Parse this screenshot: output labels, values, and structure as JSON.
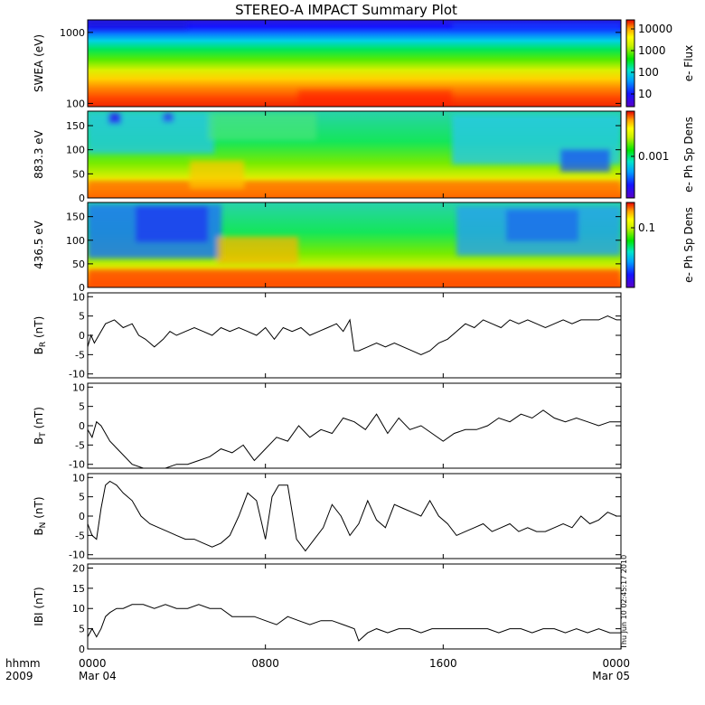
{
  "title": "STEREO-A IMPACT Summary Plot",
  "stamp": "Thu Jun 10 02:45:17 2010",
  "time_axis": {
    "units_label": "hhmm",
    "year_label": "2009",
    "ticks": [
      {
        "hours": 0,
        "label": "0000",
        "date": "Mar 04"
      },
      {
        "hours": 8,
        "label": "0800",
        "date": ""
      },
      {
        "hours": 16,
        "label": "1600",
        "date": ""
      },
      {
        "hours": 24,
        "label": "0000",
        "date": "Mar 05"
      }
    ],
    "range_hours": [
      0,
      24
    ]
  },
  "colors": {
    "line": "#000000",
    "colormap": [
      "#5a00c8",
      "#1414ff",
      "#00a0ff",
      "#00e6c8",
      "#00e600",
      "#a0f000",
      "#ffff00",
      "#ffa000",
      "#ff3000",
      "#e60000"
    ]
  },
  "chart_data": [
    {
      "type": "heatmap",
      "ylabel": "SWEA (eV)",
      "yscale": "log",
      "ylim": [
        90,
        1500
      ],
      "yticks": [
        {
          "v": 100,
          "label": "100"
        },
        {
          "v": 1000,
          "label": "1000"
        }
      ],
      "colorbar": {
        "label": "e- Flux",
        "scale": "log",
        "ticks": [
          "10",
          "100",
          "1000",
          "10000"
        ]
      },
      "pattern": "energy-flux: high at low energy (red ~100 eV), decreasing to blue above ~1200 eV, roughly steady over the day"
    },
    {
      "type": "heatmap",
      "ylabel": "883.3 eV",
      "ylim": [
        0,
        180
      ],
      "yticks": [
        {
          "v": 0,
          "label": "0"
        },
        {
          "v": 50,
          "label": "50"
        },
        {
          "v": 100,
          "label": "100"
        },
        {
          "v": 150,
          "label": "150"
        }
      ],
      "colorbar": {
        "label": "e- Ph Sp Dens",
        "ticks": [
          "0.001"
        ]
      },
      "pattern": "pitch-angle: strongest near 0 deg, blue patches at high angles before 0500 and after 1800"
    },
    {
      "type": "heatmap",
      "ylabel": "436.5 eV",
      "ylim": [
        0,
        180
      ],
      "yticks": [
        {
          "v": 0,
          "label": "0"
        },
        {
          "v": 50,
          "label": "50"
        },
        {
          "v": 100,
          "label": "100"
        },
        {
          "v": 150,
          "label": "150"
        }
      ],
      "colorbar": {
        "label": "e- Ph Sp Dens",
        "ticks": [
          "0.1"
        ]
      },
      "pattern": "pitch-angle: orange/red near 0 deg, blue above ~80 deg before 0600 and after 1700"
    },
    {
      "type": "line",
      "ylabel_main": "B",
      "ylabel_sub": "R",
      "ylabel_unit": " (nT)",
      "ylim": [
        -11,
        11
      ],
      "yticks": [
        {
          "v": -10,
          "label": "-10"
        },
        {
          "v": -5,
          "label": "-5"
        },
        {
          "v": 0,
          "label": "0"
        },
        {
          "v": 5,
          "label": "5"
        },
        {
          "v": 10,
          "label": "10"
        }
      ],
      "x": [
        0,
        0.15,
        0.3,
        0.5,
        0.8,
        1.2,
        1.6,
        2.0,
        2.3,
        2.6,
        3.0,
        3.4,
        3.7,
        4.0,
        4.4,
        4.8,
        5.2,
        5.6,
        6.0,
        6.4,
        6.8,
        7.2,
        7.6,
        8.0,
        8.4,
        8.8,
        9.2,
        9.6,
        10.0,
        10.4,
        10.8,
        11.2,
        11.5,
        11.8,
        12.0,
        12.2,
        12.6,
        13.0,
        13.4,
        13.8,
        14.2,
        14.6,
        15.0,
        15.4,
        15.8,
        16.2,
        16.6,
        17.0,
        17.4,
        17.8,
        18.2,
        18.6,
        19.0,
        19.4,
        19.8,
        20.2,
        20.6,
        21.0,
        21.4,
        21.8,
        22.2,
        22.6,
        23.0,
        23.4,
        23.8,
        24.0
      ],
      "y": [
        -3,
        0,
        -2,
        0,
        3,
        4,
        2,
        3,
        0,
        -1,
        -3,
        -1,
        1,
        0,
        1,
        2,
        1,
        0,
        2,
        1,
        2,
        1,
        0,
        2,
        -1,
        2,
        1,
        2,
        0,
        1,
        2,
        3,
        1,
        4,
        -4,
        -4,
        -3,
        -2,
        -3,
        -2,
        -3,
        -4,
        -5,
        -4,
        -2,
        -1,
        1,
        3,
        2,
        4,
        3,
        2,
        4,
        3,
        4,
        3,
        2,
        3,
        4,
        3,
        4,
        4,
        4,
        5,
        4,
        4
      ]
    },
    {
      "type": "line",
      "ylabel_main": "B",
      "ylabel_sub": "T",
      "ylabel_unit": " (nT)",
      "ylim": [
        -11,
        11
      ],
      "yticks": [
        {
          "v": -10,
          "label": "-10"
        },
        {
          "v": -5,
          "label": "-5"
        },
        {
          "v": 0,
          "label": "0"
        },
        {
          "v": 5,
          "label": "5"
        },
        {
          "v": 10,
          "label": "10"
        }
      ],
      "x": [
        0,
        0.2,
        0.4,
        0.6,
        1.0,
        1.5,
        2.0,
        2.5,
        3.0,
        3.5,
        4.0,
        4.5,
        5.0,
        5.5,
        6.0,
        6.5,
        7.0,
        7.5,
        8.0,
        8.5,
        9.0,
        9.5,
        10.0,
        10.5,
        11.0,
        11.5,
        12.0,
        12.5,
        13.0,
        13.5,
        14.0,
        14.5,
        15.0,
        15.5,
        16.0,
        16.5,
        17.0,
        17.5,
        18.0,
        18.5,
        19.0,
        19.5,
        20.0,
        20.5,
        21.0,
        21.5,
        22.0,
        22.5,
        23.0,
        23.5,
        24.0
      ],
      "y": [
        -1,
        -3,
        1,
        0,
        -4,
        -7,
        -10,
        -11,
        -11,
        -11,
        -10,
        -10,
        -9,
        -8,
        -6,
        -7,
        -5,
        -9,
        -6,
        -3,
        -4,
        0,
        -3,
        -1,
        -2,
        2,
        1,
        -1,
        3,
        -2,
        2,
        -1,
        0,
        -2,
        -4,
        -2,
        -1,
        -1,
        0,
        2,
        1,
        3,
        2,
        4,
        2,
        1,
        2,
        1,
        0,
        1,
        1
      ]
    },
    {
      "type": "line",
      "ylabel_main": "B",
      "ylabel_sub": "N",
      "ylabel_unit": " (nT)",
      "ylim": [
        -11,
        11
      ],
      "yticks": [
        {
          "v": -10,
          "label": "-10"
        },
        {
          "v": -5,
          "label": "-5"
        },
        {
          "v": 0,
          "label": "0"
        },
        {
          "v": 5,
          "label": "5"
        },
        {
          "v": 10,
          "label": "10"
        }
      ],
      "x": [
        0,
        0.2,
        0.4,
        0.6,
        0.8,
        1.0,
        1.3,
        1.6,
        2.0,
        2.4,
        2.8,
        3.2,
        3.6,
        4.0,
        4.4,
        4.8,
        5.2,
        5.6,
        6.0,
        6.4,
        6.8,
        7.2,
        7.6,
        8.0,
        8.3,
        8.6,
        9.0,
        9.4,
        9.8,
        10.2,
        10.6,
        11.0,
        11.4,
        11.8,
        12.2,
        12.6,
        13.0,
        13.4,
        13.8,
        14.2,
        14.6,
        15.0,
        15.4,
        15.8,
        16.2,
        16.6,
        17.0,
        17.4,
        17.8,
        18.2,
        18.6,
        19.0,
        19.4,
        19.8,
        20.2,
        20.6,
        21.0,
        21.4,
        21.8,
        22.2,
        22.6,
        23.0,
        23.4,
        23.8,
        24.0
      ],
      "y": [
        -2,
        -5,
        -6,
        2,
        8,
        9,
        8,
        6,
        4,
        0,
        -2,
        -3,
        -4,
        -5,
        -6,
        -6,
        -7,
        -8,
        -7,
        -5,
        0,
        6,
        4,
        -6,
        5,
        8,
        8,
        -6,
        -9,
        -6,
        -3,
        3,
        0,
        -5,
        -2,
        4,
        -1,
        -3,
        3,
        2,
        1,
        0,
        4,
        0,
        -2,
        -5,
        -4,
        -3,
        -2,
        -4,
        -3,
        -2,
        -4,
        -3,
        -4,
        -4,
        -3,
        -2,
        -3,
        0,
        -2,
        -1,
        1,
        0,
        0
      ]
    },
    {
      "type": "line",
      "ylabel_main": "IBI",
      "ylabel_sub": "",
      "ylabel_unit": " (nT)",
      "ylim": [
        0,
        21
      ],
      "yticks": [
        {
          "v": 0,
          "label": "0"
        },
        {
          "v": 5,
          "label": "5"
        },
        {
          "v": 10,
          "label": "10"
        },
        {
          "v": 15,
          "label": "15"
        },
        {
          "v": 20,
          "label": "20"
        }
      ],
      "x": [
        0,
        0.2,
        0.4,
        0.6,
        0.8,
        1.0,
        1.3,
        1.6,
        2.0,
        2.5,
        3.0,
        3.5,
        4.0,
        4.5,
        5.0,
        5.5,
        6.0,
        6.5,
        7.0,
        7.5,
        8.0,
        8.5,
        9.0,
        9.5,
        10.0,
        10.5,
        11.0,
        11.5,
        12.0,
        12.2,
        12.6,
        13.0,
        13.5,
        14.0,
        14.5,
        15.0,
        15.5,
        16.0,
        16.5,
        17.0,
        17.5,
        18.0,
        18.5,
        19.0,
        19.5,
        20.0,
        20.5,
        21.0,
        21.5,
        22.0,
        22.5,
        23.0,
        23.5,
        24.0
      ],
      "y": [
        3,
        5,
        3,
        5,
        8,
        9,
        10,
        10,
        11,
        11,
        10,
        11,
        10,
        10,
        11,
        10,
        10,
        8,
        8,
        8,
        7,
        6,
        8,
        7,
        6,
        7,
        7,
        6,
        5,
        2,
        4,
        5,
        4,
        5,
        5,
        4,
        5,
        5,
        5,
        5,
        5,
        5,
        4,
        5,
        5,
        4,
        5,
        5,
        4,
        5,
        4,
        5,
        4,
        4
      ]
    }
  ]
}
